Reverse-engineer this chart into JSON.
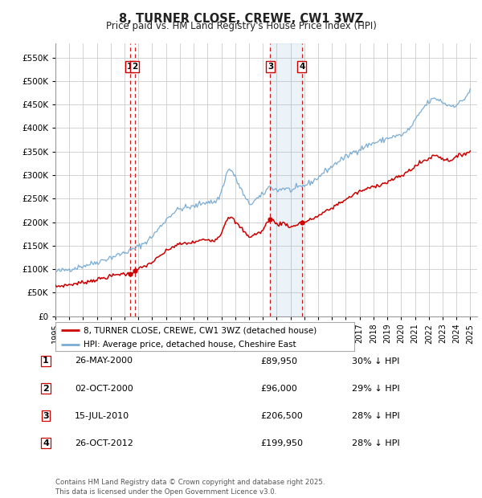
{
  "title": "8, TURNER CLOSE, CREWE, CW1 3WZ",
  "subtitle": "Price paid vs. HM Land Registry's House Price Index (HPI)",
  "legend_property": "8, TURNER CLOSE, CREWE, CW1 3WZ (detached house)",
  "legend_hpi": "HPI: Average price, detached house, Cheshire East",
  "footer1": "Contains HM Land Registry data © Crown copyright and database right 2025.",
  "footer2": "This data is licensed under the Open Government Licence v3.0.",
  "yticks": [
    0,
    50000,
    100000,
    150000,
    200000,
    250000,
    300000,
    350000,
    400000,
    450000,
    500000,
    550000
  ],
  "ytick_labels": [
    "£0",
    "£50K",
    "£100K",
    "£150K",
    "£200K",
    "£250K",
    "£300K",
    "£350K",
    "£400K",
    "£450K",
    "£500K",
    "£550K"
  ],
  "xlim_start": 1995.0,
  "xlim_end": 2025.5,
  "ylim_min": 0,
  "ylim_max": 580000,
  "property_color": "#cc0000",
  "hpi_color": "#7aadd4",
  "transactions": [
    {
      "id": 1,
      "date": 2000.38,
      "price": 89950,
      "label": "1",
      "desc": "26-MAY-2000",
      "price_str": "£89,950",
      "pct": "30% ↓ HPI"
    },
    {
      "id": 2,
      "date": 2000.75,
      "price": 96000,
      "label": "2",
      "desc": "02-OCT-2000",
      "price_str": "£96,000",
      "pct": "29% ↓ HPI"
    },
    {
      "id": 3,
      "date": 2010.54,
      "price": 206500,
      "label": "3",
      "desc": "15-JUL-2010",
      "price_str": "£206,500",
      "pct": "28% ↓ HPI"
    },
    {
      "id": 4,
      "date": 2012.82,
      "price": 199950,
      "label": "4",
      "desc": "26-OCT-2012",
      "price_str": "£199,950",
      "pct": "28% ↓ HPI"
    }
  ],
  "shaded_region": [
    2010.54,
    2012.82
  ],
  "background_color": "#ffffff",
  "grid_color": "#cccccc",
  "xtick_years": [
    1995,
    1996,
    1997,
    1998,
    1999,
    2000,
    2001,
    2002,
    2003,
    2004,
    2005,
    2006,
    2007,
    2008,
    2009,
    2010,
    2011,
    2012,
    2013,
    2014,
    2015,
    2016,
    2017,
    2018,
    2019,
    2020,
    2021,
    2022,
    2023,
    2024,
    2025
  ]
}
